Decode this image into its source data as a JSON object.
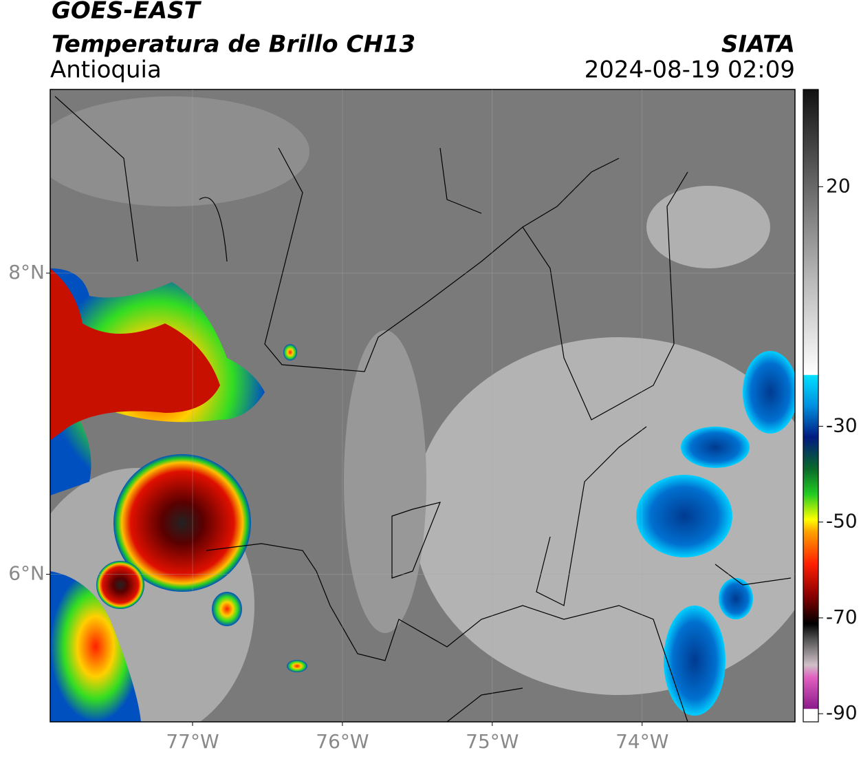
{
  "header": {
    "title": "GOES-EAST",
    "product": "Temperatura de Brillo CH13",
    "region": "Antioquia",
    "agency": "SIATA",
    "datetime": "2024-08-19 02:09"
  },
  "map": {
    "xlim": [
      -77.95,
      -72.98
    ],
    "ylim": [
      5.02,
      9.22
    ],
    "xticks": [
      {
        "value": -77,
        "label": "77°W"
      },
      {
        "value": -76,
        "label": "76°W"
      },
      {
        "value": -75,
        "label": "75°W"
      },
      {
        "value": -74,
        "label": "74°W"
      }
    ],
    "yticks": [
      {
        "value": 8,
        "label": "8°N"
      },
      {
        "value": 6,
        "label": "6°N"
      }
    ],
    "grid": true
  },
  "colorbar": {
    "clim": [
      -91.7,
      40.3
    ],
    "ticks": [
      20,
      -30,
      -50,
      -70,
      -90
    ]
  }
}
